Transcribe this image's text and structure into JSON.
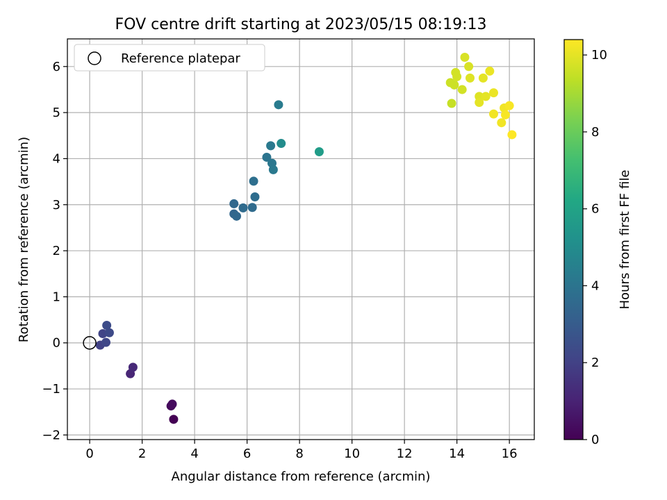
{
  "chart_data": {
    "type": "scatter",
    "title": "FOV centre drift starting at 2023/05/15 08:19:13",
    "xlabel": "Angular distance from reference (arcmin)",
    "ylabel": "Rotation from reference (arcmin)",
    "xlim": [
      -0.85,
      16.95
    ],
    "ylim": [
      -2.1,
      6.6
    ],
    "xticks": [
      0,
      2,
      4,
      6,
      8,
      10,
      12,
      14,
      16
    ],
    "xtick_labels": [
      "0",
      "2",
      "4",
      "6",
      "8",
      "10",
      "12",
      "14",
      "16"
    ],
    "yticks": [
      -2,
      -1,
      0,
      1,
      2,
      3,
      4,
      5,
      6
    ],
    "ytick_labels": [
      "−2",
      "−1",
      "0",
      "1",
      "2",
      "3",
      "4",
      "5",
      "6"
    ],
    "grid": true,
    "legend": {
      "position": "top-left",
      "entries": [
        "Reference platepar"
      ]
    },
    "reference_point": {
      "x": 0,
      "y": 0
    },
    "colorbar": {
      "label": "Hours from first FF file",
      "colormap": "viridis",
      "range": [
        0,
        10.4
      ],
      "ticks": [
        0,
        2,
        4,
        6,
        8,
        10
      ],
      "tick_labels": [
        "0",
        "2",
        "4",
        "6",
        "8",
        "10"
      ]
    },
    "points": [
      {
        "x": 3.2,
        "y": -1.66,
        "c": 0.0
      },
      {
        "x": 3.1,
        "y": -1.37,
        "c": 0.2
      },
      {
        "x": 3.15,
        "y": -1.33,
        "c": 0.3
      },
      {
        "x": 1.55,
        "y": -0.67,
        "c": 1.1
      },
      {
        "x": 1.65,
        "y": -0.53,
        "c": 1.2
      },
      {
        "x": 0.4,
        "y": -0.05,
        "c": 2.0
      },
      {
        "x": 0.5,
        "y": 0.2,
        "c": 2.1
      },
      {
        "x": 0.62,
        "y": 0.01,
        "c": 2.2
      },
      {
        "x": 0.75,
        "y": 0.22,
        "c": 2.3
      },
      {
        "x": 0.65,
        "y": 0.38,
        "c": 2.4
      },
      {
        "x": 5.5,
        "y": 2.8,
        "c": 3.4
      },
      {
        "x": 5.6,
        "y": 2.75,
        "c": 3.5
      },
      {
        "x": 5.5,
        "y": 3.02,
        "c": 3.5
      },
      {
        "x": 5.85,
        "y": 2.93,
        "c": 3.6
      },
      {
        "x": 6.2,
        "y": 2.94,
        "c": 3.6
      },
      {
        "x": 6.3,
        "y": 3.17,
        "c": 3.7
      },
      {
        "x": 6.25,
        "y": 3.51,
        "c": 3.8
      },
      {
        "x": 6.75,
        "y": 4.03,
        "c": 4.0
      },
      {
        "x": 6.95,
        "y": 3.9,
        "c": 4.1
      },
      {
        "x": 7.0,
        "y": 3.76,
        "c": 4.2
      },
      {
        "x": 6.9,
        "y": 4.28,
        "c": 4.2
      },
      {
        "x": 7.2,
        "y": 5.17,
        "c": 4.3
      },
      {
        "x": 7.3,
        "y": 4.33,
        "c": 5.0
      },
      {
        "x": 8.75,
        "y": 4.15,
        "c": 5.7
      },
      {
        "x": 13.8,
        "y": 5.2,
        "c": 9.5
      },
      {
        "x": 13.75,
        "y": 5.65,
        "c": 9.6
      },
      {
        "x": 13.9,
        "y": 5.6,
        "c": 9.6
      },
      {
        "x": 13.95,
        "y": 5.87,
        "c": 9.7
      },
      {
        "x": 14.0,
        "y": 5.78,
        "c": 9.7
      },
      {
        "x": 14.2,
        "y": 5.5,
        "c": 9.7
      },
      {
        "x": 14.3,
        "y": 6.2,
        "c": 9.8
      },
      {
        "x": 14.45,
        "y": 6.0,
        "c": 9.8
      },
      {
        "x": 14.5,
        "y": 5.75,
        "c": 9.9
      },
      {
        "x": 14.85,
        "y": 5.35,
        "c": 9.9
      },
      {
        "x": 14.85,
        "y": 5.22,
        "c": 10.0
      },
      {
        "x": 15.0,
        "y": 5.75,
        "c": 10.0
      },
      {
        "x": 15.1,
        "y": 5.35,
        "c": 10.0
      },
      {
        "x": 15.25,
        "y": 5.9,
        "c": 10.1
      },
      {
        "x": 15.4,
        "y": 5.43,
        "c": 10.1
      },
      {
        "x": 15.4,
        "y": 4.97,
        "c": 10.2
      },
      {
        "x": 15.7,
        "y": 4.78,
        "c": 10.2
      },
      {
        "x": 15.8,
        "y": 5.1,
        "c": 10.2
      },
      {
        "x": 15.85,
        "y": 4.95,
        "c": 10.3
      },
      {
        "x": 16.0,
        "y": 5.15,
        "c": 10.3
      },
      {
        "x": 16.1,
        "y": 4.52,
        "c": 10.4
      }
    ]
  }
}
